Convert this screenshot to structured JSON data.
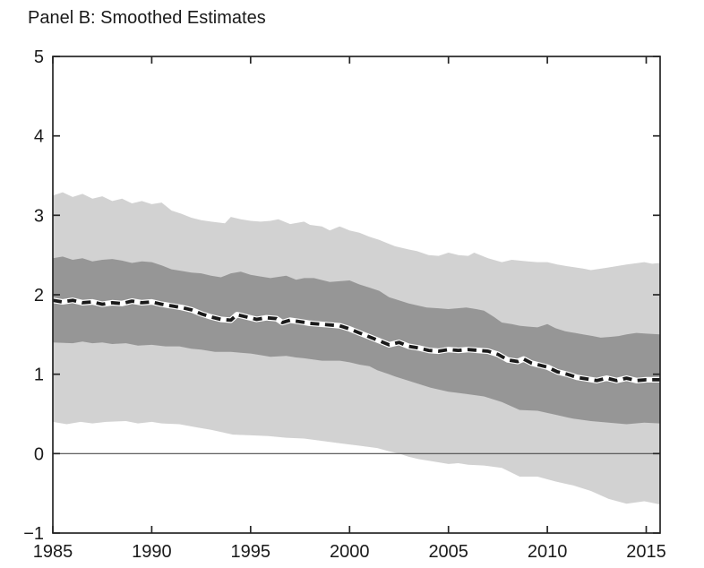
{
  "title": "Panel B: Smoothed Estimates",
  "colors": {
    "background": "#ffffff",
    "outer_band": "#d2d2d2",
    "inner_band": "#969696",
    "median_line": "#1a1a1a",
    "median_underlay": "#ffffff",
    "zero_line": "#4d4d4d",
    "axis": "#262626",
    "text": "#1a1a1a"
  },
  "chart_data": {
    "type": "area",
    "title": "Panel B: Smoothed Estimates",
    "xlabel": "",
    "ylabel": "",
    "xlim": [
      1985,
      2015.7
    ],
    "ylim": [
      -1,
      5
    ],
    "x_ticks": [
      1985,
      1990,
      1995,
      2000,
      2005,
      2010,
      2015
    ],
    "x_tick_labels": [
      "1985",
      "1990",
      "1995",
      "2000",
      "2005",
      "2010",
      "2015"
    ],
    "y_ticks": [
      -1,
      0,
      1,
      2,
      3,
      4,
      5
    ],
    "y_tick_labels": [
      "−1",
      "0",
      "1",
      "2",
      "3",
      "4",
      "5"
    ],
    "grid": false,
    "zero_line": true,
    "legend": null,
    "series": [
      {
        "name": "outer band upper bound",
        "role": "outer_top",
        "x": [
          1985,
          1985.5,
          1986,
          1986.5,
          1987,
          1987.5,
          1988,
          1988.5,
          1989,
          1989.5,
          1990,
          1990.5,
          1991,
          1991.5,
          1992,
          1992.5,
          1993,
          1993.7,
          1994,
          1994.5,
          1995,
          1995.5,
          1996,
          1996.4,
          1997,
          1997.7,
          1998,
          1998.6,
          1999,
          1999.5,
          2000,
          2000.5,
          2001,
          2001.5,
          2002,
          2002.3,
          2003,
          2003.4,
          2004,
          2004.5,
          2005,
          2005.5,
          2006,
          2006.3,
          2007,
          2007.7,
          2008.2,
          2009,
          2009.5,
          2010,
          2010.5,
          2011,
          2011.8,
          2012.2,
          2013,
          2014,
          2014.9,
          2015.3,
          2015.7
        ],
        "y": [
          3.25,
          3.29,
          3.23,
          3.27,
          3.21,
          3.24,
          3.18,
          3.21,
          3.15,
          3.18,
          3.14,
          3.16,
          3.06,
          3.02,
          2.97,
          2.94,
          2.92,
          2.9,
          2.98,
          2.95,
          2.93,
          2.92,
          2.93,
          2.95,
          2.89,
          2.92,
          2.88,
          2.86,
          2.81,
          2.86,
          2.81,
          2.78,
          2.73,
          2.69,
          2.64,
          2.61,
          2.57,
          2.55,
          2.5,
          2.49,
          2.53,
          2.5,
          2.49,
          2.53,
          2.46,
          2.41,
          2.44,
          2.42,
          2.41,
          2.41,
          2.38,
          2.36,
          2.33,
          2.31,
          2.34,
          2.38,
          2.41,
          2.39,
          2.4
        ]
      },
      {
        "name": "outer band lower bound",
        "role": "outer_bottom",
        "x": [
          1985,
          1985.7,
          1986.4,
          1987,
          1987.7,
          1988.7,
          1989.3,
          1990,
          1990.5,
          1991.4,
          1992.3,
          1993,
          1994.1,
          1995,
          1995.9,
          1996.8,
          1997.7,
          1998.6,
          1999.5,
          2000.5,
          2001.4,
          2002,
          2002.5,
          2003,
          2003.5,
          2004,
          2005,
          2005.5,
          2006,
          2006.8,
          2007.7,
          2008.6,
          2009.5,
          2010.4,
          2011.3,
          2012.2,
          2013.1,
          2014,
          2014.9,
          2015.3,
          2015.7
        ],
        "y": [
          0.4,
          0.37,
          0.4,
          0.38,
          0.4,
          0.41,
          0.38,
          0.4,
          0.38,
          0.37,
          0.33,
          0.3,
          0.24,
          0.23,
          0.22,
          0.2,
          0.19,
          0.16,
          0.13,
          0.1,
          0.07,
          0.03,
          0.0,
          -0.04,
          -0.07,
          -0.09,
          -0.13,
          -0.12,
          -0.14,
          -0.15,
          -0.18,
          -0.29,
          -0.29,
          -0.35,
          -0.4,
          -0.47,
          -0.57,
          -0.63,
          -0.6,
          -0.62,
          -0.64
        ]
      },
      {
        "name": "inner band upper bound",
        "role": "inner_top",
        "x": [
          1985,
          1985.5,
          1986,
          1986.5,
          1987,
          1987.5,
          1988,
          1988.5,
          1989,
          1989.5,
          1990,
          1990.5,
          1991,
          1991.5,
          1992,
          1992.5,
          1993,
          1993.5,
          1994,
          1994.5,
          1995,
          1995.5,
          1996,
          1996.8,
          1997.3,
          1997.7,
          1998.2,
          1999,
          1999.5,
          2000,
          2000.5,
          2001,
          2001.5,
          2002,
          2002.5,
          2003,
          2003.9,
          2004.5,
          2005,
          2005.9,
          2006.4,
          2006.8,
          2007.3,
          2007.7,
          2008.2,
          2008.6,
          2009,
          2009.5,
          2010,
          2010.4,
          2010.9,
          2011.4,
          2011.8,
          2012.3,
          2012.7,
          2013.2,
          2013.6,
          2014,
          2014.5,
          2015,
          2015.7
        ],
        "y": [
          2.46,
          2.48,
          2.44,
          2.46,
          2.42,
          2.44,
          2.45,
          2.43,
          2.4,
          2.42,
          2.41,
          2.37,
          2.32,
          2.3,
          2.28,
          2.27,
          2.24,
          2.22,
          2.27,
          2.29,
          2.25,
          2.23,
          2.21,
          2.24,
          2.19,
          2.21,
          2.21,
          2.16,
          2.17,
          2.18,
          2.13,
          2.09,
          2.05,
          1.97,
          1.93,
          1.89,
          1.84,
          1.83,
          1.82,
          1.84,
          1.82,
          1.8,
          1.72,
          1.65,
          1.63,
          1.61,
          1.6,
          1.59,
          1.63,
          1.58,
          1.54,
          1.52,
          1.5,
          1.48,
          1.46,
          1.47,
          1.48,
          1.5,
          1.52,
          1.51,
          1.5
        ]
      },
      {
        "name": "inner band lower bound",
        "role": "inner_bottom",
        "x": [
          1985,
          1986,
          1986.5,
          1987,
          1987.5,
          1988,
          1988.7,
          1989.3,
          1990,
          1990.7,
          1991.4,
          1992,
          1992.5,
          1993.2,
          1994,
          1994.5,
          1995,
          1995.5,
          1996,
          1996.8,
          1997.3,
          1997.7,
          1998.6,
          1999.5,
          2000,
          2000.5,
          2001,
          2001.4,
          2002,
          2002.3,
          2003.2,
          2004.1,
          2005,
          2005.9,
          2006.8,
          2007.7,
          2008.6,
          2009.5,
          2010.4,
          2011.3,
          2012.2,
          2013.1,
          2014,
          2014.9,
          2015.7
        ],
        "y": [
          1.4,
          1.39,
          1.41,
          1.39,
          1.4,
          1.38,
          1.39,
          1.36,
          1.37,
          1.35,
          1.35,
          1.32,
          1.31,
          1.28,
          1.28,
          1.27,
          1.26,
          1.24,
          1.22,
          1.23,
          1.21,
          1.2,
          1.17,
          1.17,
          1.15,
          1.12,
          1.1,
          1.05,
          1.0,
          0.97,
          0.9,
          0.83,
          0.78,
          0.75,
          0.72,
          0.65,
          0.55,
          0.54,
          0.49,
          0.44,
          0.41,
          0.39,
          0.37,
          0.39,
          0.38
        ]
      },
      {
        "name": "smoothed point estimate (dashed median line)",
        "role": "median",
        "x": [
          1985,
          1985.5,
          1986,
          1986.5,
          1987,
          1987.5,
          1988,
          1988.5,
          1989,
          1989.5,
          1990,
          1990.5,
          1991,
          1991.5,
          1992,
          1992.5,
          1993,
          1993.5,
          1994,
          1994.3,
          1994.8,
          1995.3,
          1995.8,
          1996.3,
          1996.6,
          1997,
          1997.5,
          1998,
          1998.5,
          1999,
          1999.5,
          2000,
          2000.5,
          2001,
          2001.5,
          2002,
          2002.5,
          2003,
          2003.5,
          2004,
          2004.5,
          2005,
          2005.5,
          2006,
          2006.5,
          2007,
          2007.5,
          2008,
          2008.5,
          2008.8,
          2009.2,
          2009.5,
          2010,
          2010.5,
          2011,
          2011.5,
          2012,
          2012.5,
          2013,
          2013.5,
          2014,
          2014.5,
          2015,
          2015.7
        ],
        "y": [
          1.93,
          1.91,
          1.93,
          1.9,
          1.91,
          1.88,
          1.9,
          1.89,
          1.92,
          1.9,
          1.91,
          1.88,
          1.86,
          1.84,
          1.81,
          1.76,
          1.72,
          1.69,
          1.68,
          1.75,
          1.72,
          1.69,
          1.71,
          1.7,
          1.65,
          1.68,
          1.66,
          1.64,
          1.63,
          1.62,
          1.61,
          1.57,
          1.52,
          1.47,
          1.42,
          1.37,
          1.4,
          1.35,
          1.33,
          1.3,
          1.29,
          1.31,
          1.3,
          1.31,
          1.3,
          1.29,
          1.25,
          1.18,
          1.16,
          1.19,
          1.14,
          1.12,
          1.09,
          1.03,
          1.0,
          0.96,
          0.94,
          0.92,
          0.95,
          0.92,
          0.95,
          0.92,
          0.93,
          0.93
        ]
      }
    ]
  }
}
